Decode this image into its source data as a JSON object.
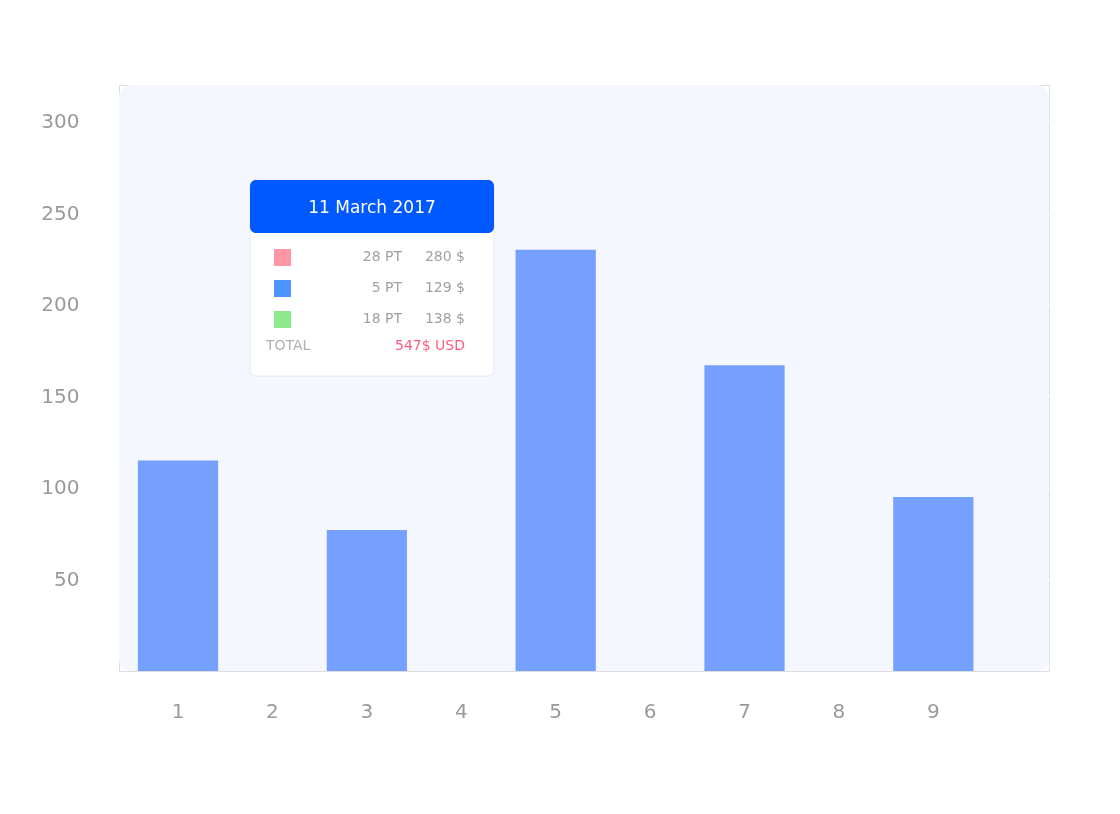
{
  "chart_data": {
    "type": "bar",
    "categories": [
      "1",
      "2",
      "3",
      "4",
      "5",
      "6",
      "7",
      "8",
      "9"
    ],
    "values": [
      115,
      null,
      77,
      null,
      230,
      null,
      167,
      null,
      95
    ],
    "color": "#75a0ff",
    "ylim": [
      0,
      320
    ],
    "yticks": [
      50,
      100,
      150,
      200,
      250,
      300
    ],
    "grid": "y",
    "annotations": [
      "11 March 2017",
      "28 PT",
      "280 $",
      "5 PT",
      "129 $",
      "18 PT",
      "138 $",
      "TOTAL",
      "547$ USD"
    ]
  }
}
